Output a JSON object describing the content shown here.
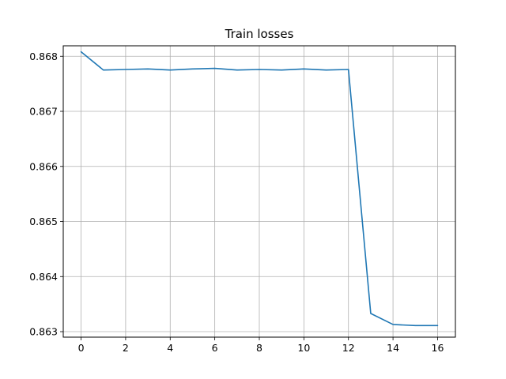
{
  "chart_data": {
    "type": "line",
    "title": "Train losses",
    "xlabel": "",
    "ylabel": "",
    "xlim": [
      -0.8,
      16.8
    ],
    "ylim": [
      0.8629,
      0.86819
    ],
    "x_ticks": [
      0,
      2,
      4,
      6,
      8,
      10,
      12,
      14,
      16
    ],
    "y_ticks": [
      0.863,
      0.864,
      0.865,
      0.866,
      0.867,
      0.868
    ],
    "grid": true,
    "line_color": "#1f77b4",
    "grid_color": "#b0b0b0",
    "series": [
      {
        "x": [
          0,
          1,
          2,
          3,
          4,
          5,
          6,
          7,
          8,
          9,
          10,
          11,
          12,
          13,
          14,
          15,
          16
        ],
        "values": [
          0.86808,
          0.86775,
          0.86776,
          0.86777,
          0.86775,
          0.86777,
          0.86778,
          0.86775,
          0.86776,
          0.86775,
          0.86777,
          0.86775,
          0.86776,
          0.86333,
          0.86313,
          0.86311,
          0.86311
        ]
      }
    ]
  }
}
